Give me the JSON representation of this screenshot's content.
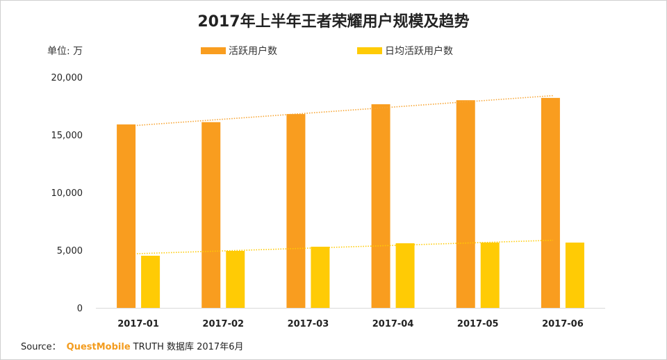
{
  "chart_data": {
    "type": "bar",
    "title": "2017年上半年王者荣耀用户规模及趋势",
    "unit_label": "单位: 万",
    "categories": [
      "2017-01",
      "2017-02",
      "2017-03",
      "2017-04",
      "2017-05",
      "2017-06"
    ],
    "series": [
      {
        "name": "活跃用户数",
        "color": "#f99d1f",
        "values": [
          15900,
          16100,
          16800,
          17650,
          18000,
          18200
        ],
        "trendline": "linear",
        "trend_color": "#f7a534"
      },
      {
        "name": "日均活跃用户数",
        "color": "#ffcb05",
        "values": [
          4520,
          4940,
          5300,
          5600,
          5660,
          5660
        ],
        "trendline": "linear",
        "trend_color": "#ffcb05"
      }
    ],
    "ylim": [
      0,
      20000
    ],
    "yticks": [
      0,
      5000,
      10000,
      15000,
      20000
    ],
    "ytick_labels": [
      "0",
      "5,000",
      "10,000",
      "15,000",
      "20,000"
    ],
    "grid": false,
    "legend_placement": "top"
  },
  "source": {
    "prefix": "Source：",
    "brand": "QuestMobile",
    "suffix": "TRUTH 数据库 2017年6月"
  }
}
